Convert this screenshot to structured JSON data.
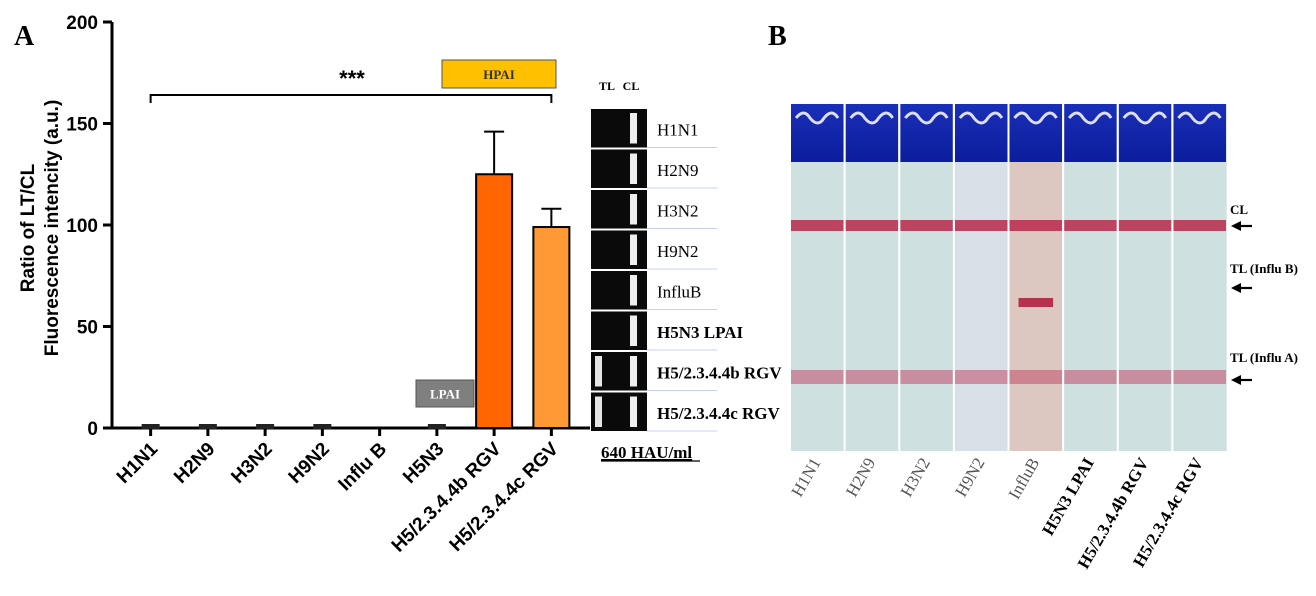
{
  "panel_a": {
    "label": "A",
    "chart_data": {
      "type": "bar",
      "categories": [
        "H1N1",
        "H2N9",
        "H3N2",
        "H9N2",
        "Influ B",
        "H5N3",
        "H5/2.3.4.4b RGV",
        "H5/2.3.4.4c RGV"
      ],
      "values": [
        0.5,
        0.5,
        0.5,
        0.5,
        0,
        0.5,
        125,
        99
      ],
      "errors": [
        0,
        0,
        0,
        0,
        0,
        0,
        21,
        9
      ],
      "bar_colors": [
        "#222222",
        "#222222",
        "#222222",
        "#222222",
        "#222222",
        "#222222",
        "#ff6600",
        "#ff9933"
      ],
      "ylabel_line1": "Ratio of LT/CL",
      "ylabel_line2": "Fluorescence intencity (a.u.)",
      "ylim": [
        0,
        200
      ],
      "yticks": [
        "0",
        "50",
        "100",
        "150",
        "200"
      ],
      "significance": "***",
      "annotations": [
        {
          "text": "HPAI",
          "color": "#ffc000",
          "text_color": "#333333"
        },
        {
          "text": "LPAI",
          "color": "#7f7f7f",
          "text_color": "#ffffff"
        }
      ]
    },
    "strip_panel": {
      "tl_label": "TL",
      "cl_label": "CL",
      "rows": [
        {
          "label": "H1N1",
          "tl": false
        },
        {
          "label": "H2N9",
          "tl": false
        },
        {
          "label": "H3N2",
          "tl": false
        },
        {
          "label": "H9N2",
          "tl": false
        },
        {
          "label": "InfluB",
          "tl": false
        },
        {
          "label": "H5N3 LPAI",
          "tl": false
        },
        {
          "label": "H5/2.3.4.4b RGV",
          "tl": true
        },
        {
          "label": "H5/2.3.4.4c RGV",
          "tl": true
        }
      ],
      "footer": "640 HAU/ml"
    }
  },
  "panel_b": {
    "label": "B",
    "strips": [
      "H1N1",
      "H2N9",
      "H3N2",
      "H9N2",
      "InfluB",
      "H5N3 LPAI",
      "H5/2.3.4.4b RGV",
      "H5/2.3.4.4c RGV"
    ],
    "line_labels": {
      "cl": "CL",
      "tl_b": "TL  (Influ B)",
      "tl_a": "TL  (Influ A)"
    }
  }
}
